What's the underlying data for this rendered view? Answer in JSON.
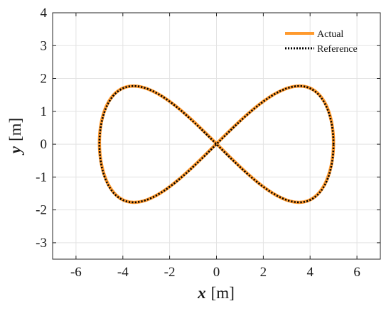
{
  "chart_data": {
    "type": "line",
    "title": "",
    "xlabel": {
      "var": "x",
      "unit": "[m]"
    },
    "ylabel": {
      "var": "y",
      "unit": "[m]"
    },
    "xlim": [
      -7,
      7
    ],
    "ylim": [
      -3.5,
      4
    ],
    "xticks": [
      -6,
      -4,
      -2,
      0,
      2,
      4,
      6
    ],
    "yticks": [
      -3,
      -2,
      -1,
      0,
      1,
      2,
      3,
      4
    ],
    "xtick_labels": [
      "-6",
      "-4",
      "-2",
      "0",
      "2",
      "4",
      "6"
    ],
    "ytick_labels": [
      "-3",
      "-2",
      "-1",
      "0",
      "1",
      "2",
      "3",
      "4"
    ],
    "grid": true,
    "legend_position": "top-right",
    "curve": {
      "shape": "lemniscate (figure-eight)",
      "x_amplitude": 5,
      "y_amplitude": 1.77,
      "lobe_extremes": [
        [
          5,
          0
        ],
        [
          3.1,
          1.77
        ],
        [
          -3.1,
          1.77
        ],
        [
          -5,
          0
        ],
        [
          -3.1,
          -1.77
        ],
        [
          3.1,
          -1.77
        ],
        [
          0,
          0
        ]
      ]
    },
    "series": [
      {
        "name": "Actual",
        "color": "#ff9a2e",
        "style": "solid"
      },
      {
        "name": "Reference",
        "color": "#000000",
        "style": "dotted"
      }
    ]
  }
}
